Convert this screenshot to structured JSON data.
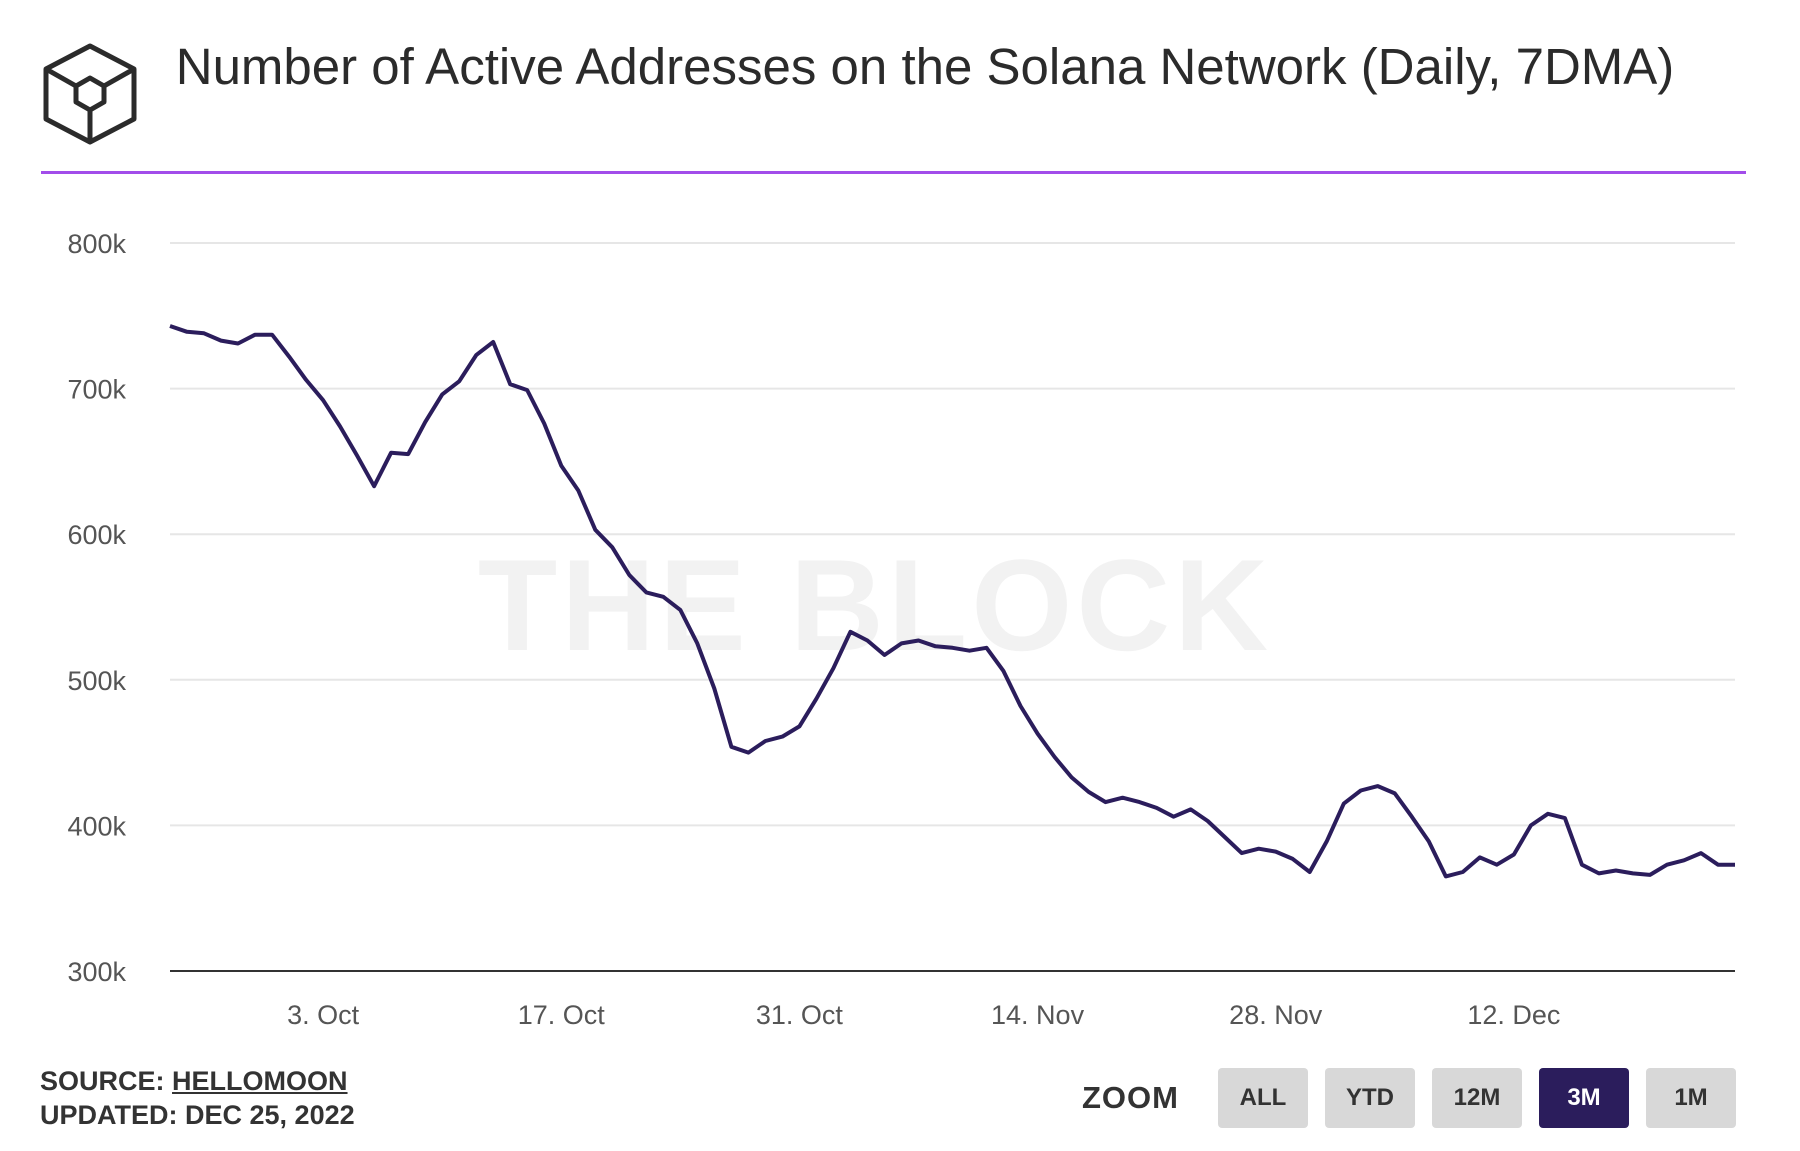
{
  "header": {
    "title": "Number of Active Addresses on the Solana Network (Daily, 7DMA)",
    "logo_icon": "the-block-cube-logo-icon"
  },
  "watermark": "THE BLOCK",
  "colors": {
    "accent": "#a24dea",
    "line": "#2b1d5c",
    "active_button": "#2b1d5c",
    "button": "#d8d8d8"
  },
  "chart_data": {
    "type": "line",
    "title": "Number of Active Addresses on the Solana Network (Daily, 7DMA)",
    "xlabel": "",
    "ylabel": "",
    "ylim": [
      300000,
      800000
    ],
    "yticks": [
      300000,
      400000,
      500000,
      600000,
      700000,
      800000
    ],
    "ytick_labels": [
      "300k",
      "400k",
      "500k",
      "600k",
      "700k",
      "800k"
    ],
    "xlim": [
      "2022-09-24",
      "2022-12-25"
    ],
    "xticks": [
      "2022-10-03",
      "2022-10-17",
      "2022-10-31",
      "2022-11-14",
      "2022-11-28",
      "2022-12-12"
    ],
    "xtick_labels": [
      "3. Oct",
      "17. Oct",
      "31. Oct",
      "14. Nov",
      "28. Nov",
      "12. Dec"
    ],
    "grid": true,
    "legend": "none",
    "series": [
      {
        "x": [
          "2022-09-24",
          "2022-09-25",
          "2022-09-26",
          "2022-09-27",
          "2022-09-28",
          "2022-09-29",
          "2022-09-30",
          "2022-10-01",
          "2022-10-02",
          "2022-10-03",
          "2022-10-04",
          "2022-10-05",
          "2022-10-06",
          "2022-10-07",
          "2022-10-08",
          "2022-10-09",
          "2022-10-10",
          "2022-10-11",
          "2022-10-12",
          "2022-10-13",
          "2022-10-14",
          "2022-10-15",
          "2022-10-16",
          "2022-10-17",
          "2022-10-18",
          "2022-10-19",
          "2022-10-20",
          "2022-10-21",
          "2022-10-22",
          "2022-10-23",
          "2022-10-24",
          "2022-10-25",
          "2022-10-26",
          "2022-10-27",
          "2022-10-28",
          "2022-10-29",
          "2022-10-30",
          "2022-10-31",
          "2022-11-01",
          "2022-11-02",
          "2022-11-03",
          "2022-11-04",
          "2022-11-05",
          "2022-11-06",
          "2022-11-07",
          "2022-11-08",
          "2022-11-09",
          "2022-11-10",
          "2022-11-11",
          "2022-11-12",
          "2022-11-13",
          "2022-11-14",
          "2022-11-15",
          "2022-11-16",
          "2022-11-17",
          "2022-11-18",
          "2022-11-19",
          "2022-11-20",
          "2022-11-21",
          "2022-11-22",
          "2022-11-23",
          "2022-11-24",
          "2022-11-25",
          "2022-11-26",
          "2022-11-27",
          "2022-11-28",
          "2022-11-29",
          "2022-11-30",
          "2022-12-01",
          "2022-12-02",
          "2022-12-03",
          "2022-12-04",
          "2022-12-05",
          "2022-12-06",
          "2022-12-07",
          "2022-12-08",
          "2022-12-09",
          "2022-12-10",
          "2022-12-11",
          "2022-12-12",
          "2022-12-13",
          "2022-12-14",
          "2022-12-15",
          "2022-12-16",
          "2022-12-17",
          "2022-12-18",
          "2022-12-19",
          "2022-12-20",
          "2022-12-21",
          "2022-12-22",
          "2022-12-23",
          "2022-12-24",
          "2022-12-25"
        ],
        "y": [
          743000,
          739000,
          738000,
          733000,
          731000,
          737000,
          737000,
          722000,
          706000,
          692000,
          674000,
          654000,
          633000,
          656000,
          655000,
          677000,
          696000,
          705000,
          723000,
          732000,
          703000,
          699000,
          676000,
          647000,
          630000,
          603000,
          591000,
          572000,
          560000,
          557000,
          548000,
          525000,
          494000,
          454000,
          450000,
          458000,
          461000,
          468000,
          487000,
          508000,
          533000,
          527000,
          517000,
          525000,
          527000,
          523000,
          522000,
          520000,
          522000,
          506000,
          482000,
          463000,
          447000,
          433000,
          423000,
          416000,
          419000,
          416000,
          412000,
          406000,
          411000,
          403000,
          392000,
          381000,
          384000,
          382000,
          377000,
          368000,
          389000,
          415000,
          424000,
          427000,
          422000,
          406000,
          389000,
          365000,
          368000,
          378000,
          373000,
          380000,
          400000,
          408000,
          405000,
          373000,
          367000,
          369000,
          367000,
          366000,
          373000,
          376000,
          381000,
          373000,
          373000
        ]
      }
    ]
  },
  "footer": {
    "source_label": "SOURCE:",
    "source_name": "HELLOMOON",
    "updated_label": "UPDATED:",
    "updated_date": "DEC 25, 2022"
  },
  "zoom": {
    "label": "ZOOM",
    "buttons": [
      "ALL",
      "YTD",
      "12M",
      "3M",
      "1M"
    ],
    "active": "3M"
  }
}
